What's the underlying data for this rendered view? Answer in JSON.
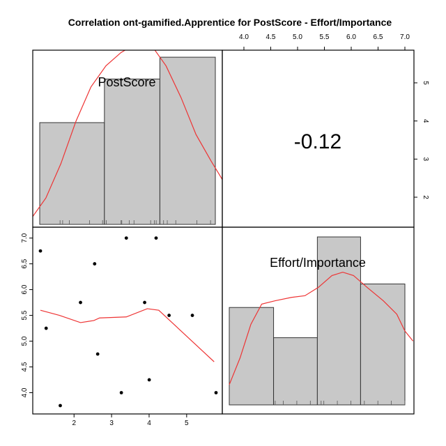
{
  "chart_data": {
    "type": "scatter-matrix",
    "title": "Correlation ont-gamified.Apprentice for PostScore - Effort/Importance",
    "variables": [
      "PostScore",
      "Effort/Importance"
    ],
    "correlation": "-0.12",
    "x_ticks": [
      "2",
      "3",
      "4",
      "5"
    ],
    "y_ticks": [
      "4.0",
      "4.5",
      "5.0",
      "5.5",
      "6.0",
      "6.5",
      "7.0"
    ],
    "right_ticks": [
      "2",
      "3",
      "4",
      "5"
    ],
    "histogram_postscore": {
      "breaks": [
        1.0,
        2.75,
        4.25,
        5.75
      ],
      "counts": [
        3.5,
        5.0,
        5.75
      ],
      "rug": [
        1.55,
        1.62,
        1.8,
        2.35,
        2.7,
        2.8,
        3.2,
        3.22,
        3.42,
        3.55,
        4.0,
        4.1,
        4.15,
        4.35,
        4.45,
        4.68,
        5.25,
        5.62
      ]
    },
    "histogram_effort": {
      "breaks": [
        3.75,
        4.57,
        5.38,
        6.18,
        7.0
      ],
      "counts": [
        2.9,
        2.0,
        5.0,
        3.6
      ],
      "rug": [
        4.6,
        4.75,
        5.0,
        5.25,
        5.45,
        5.5,
        5.75,
        6.0,
        6.25,
        6.5,
        6.75,
        7.0
      ]
    },
    "scatter": {
      "points": [
        {
          "x": 1.3,
          "y": 6.75
        },
        {
          "x": 1.45,
          "y": 5.25
        },
        {
          "x": 1.82,
          "y": 3.75
        },
        {
          "x": 2.35,
          "y": 5.75
        },
        {
          "x": 2.72,
          "y": 6.5
        },
        {
          "x": 2.8,
          "y": 4.75
        },
        {
          "x": 3.42,
          "y": 4.0
        },
        {
          "x": 3.55,
          "y": 7.0
        },
        {
          "x": 4.03,
          "y": 5.75
        },
        {
          "x": 4.15,
          "y": 4.25
        },
        {
          "x": 4.33,
          "y": 7.0
        },
        {
          "x": 4.67,
          "y": 5.5
        },
        {
          "x": 5.28,
          "y": 5.5
        },
        {
          "x": 5.9,
          "y": 4.0
        }
      ],
      "smooth": [
        {
          "x": 1.3,
          "y": 5.6
        },
        {
          "x": 1.8,
          "y": 5.5
        },
        {
          "x": 2.35,
          "y": 5.36
        },
        {
          "x": 2.7,
          "y": 5.4
        },
        {
          "x": 2.85,
          "y": 5.45
        },
        {
          "x": 3.55,
          "y": 5.47
        },
        {
          "x": 4.1,
          "y": 5.63
        },
        {
          "x": 4.4,
          "y": 5.6
        },
        {
          "x": 5.85,
          "y": 4.6
        }
      ]
    },
    "density_postscore": [
      {
        "x": 0.95,
        "y": 0.3
      },
      {
        "x": 1.3,
        "y": 1.0
      },
      {
        "x": 1.7,
        "y": 2.3
      },
      {
        "x": 2.1,
        "y": 3.9
      },
      {
        "x": 2.5,
        "y": 5.2
      },
      {
        "x": 2.9,
        "y": 6.0
      },
      {
        "x": 3.3,
        "y": 6.5
      },
      {
        "x": 3.6,
        "y": 6.75
      },
      {
        "x": 3.9,
        "y": 6.75
      },
      {
        "x": 4.2,
        "y": 6.6
      },
      {
        "x": 4.5,
        "y": 6.0
      },
      {
        "x": 4.9,
        "y": 4.8
      },
      {
        "x": 5.3,
        "y": 3.4
      },
      {
        "x": 5.7,
        "y": 2.4
      },
      {
        "x": 6.0,
        "y": 1.7
      }
    ],
    "density_effort": [
      {
        "x": 3.75,
        "y": 0.6
      },
      {
        "x": 3.95,
        "y": 1.4
      },
      {
        "x": 4.15,
        "y": 2.4
      },
      {
        "x": 4.35,
        "y": 3.0
      },
      {
        "x": 4.6,
        "y": 3.1
      },
      {
        "x": 4.9,
        "y": 3.2
      },
      {
        "x": 5.15,
        "y": 3.25
      },
      {
        "x": 5.4,
        "y": 3.5
      },
      {
        "x": 5.65,
        "y": 3.85
      },
      {
        "x": 5.85,
        "y": 3.95
      },
      {
        "x": 6.05,
        "y": 3.85
      },
      {
        "x": 6.3,
        "y": 3.5
      },
      {
        "x": 6.6,
        "y": 3.1
      },
      {
        "x": 6.85,
        "y": 2.7
      },
      {
        "x": 7.0,
        "y": 2.2
      },
      {
        "x": 7.15,
        "y": 1.9
      }
    ]
  }
}
